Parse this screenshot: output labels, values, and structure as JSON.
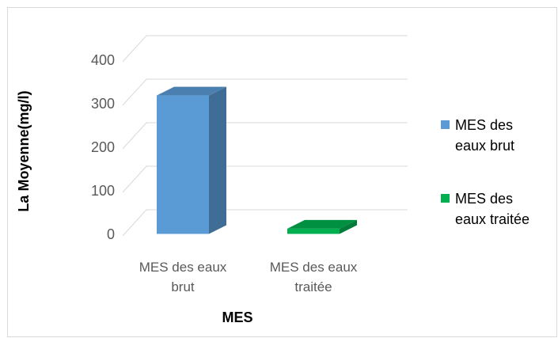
{
  "chart_data": {
    "type": "bar3d",
    "categories": [
      "MES des eaux brut",
      "MES des eaux traitée"
    ],
    "values": [
      318,
      12
    ],
    "colors": [
      "#5b9bd5",
      "#00b050"
    ],
    "ylim": [
      0,
      400
    ],
    "yticks": [
      0,
      100,
      200,
      300,
      400
    ],
    "grid": true,
    "xlabel": "MES",
    "ylabel": "La Moyenne(mg/l)",
    "legend": "right"
  }
}
